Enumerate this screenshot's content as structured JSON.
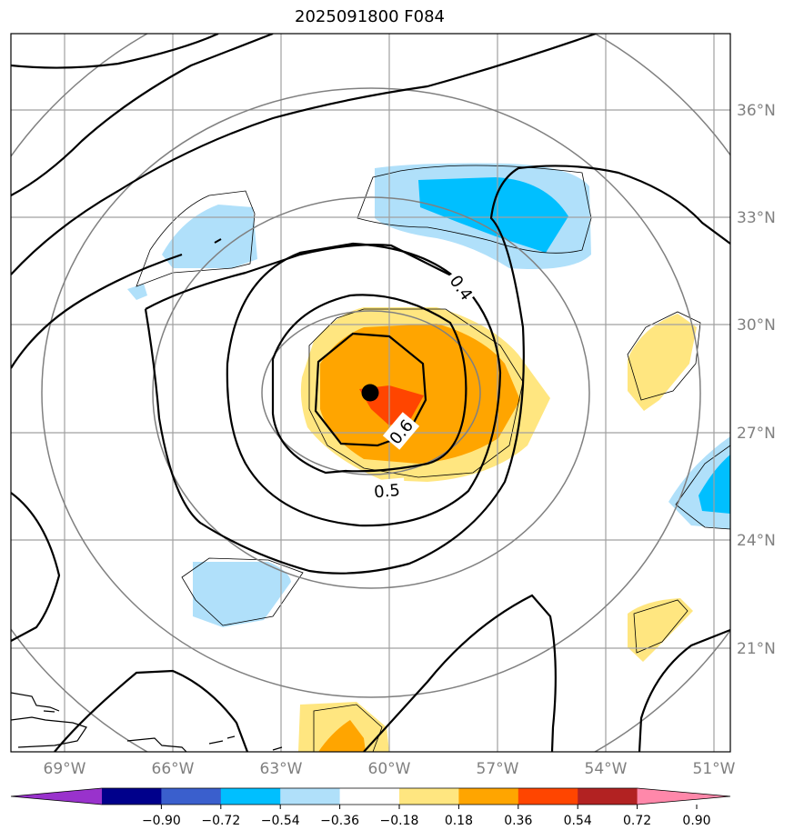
{
  "title": "2025091800 F084",
  "map": {
    "lon_labels": [
      "69°W",
      "66°W",
      "63°W",
      "60°W",
      "57°W",
      "54°W",
      "51°W"
    ],
    "lat_labels": [
      "36°N",
      "33°N",
      "30°N",
      "27°N",
      "24°N",
      "21°N"
    ],
    "contour_labels": [
      "0.4",
      "0.6",
      "0.5"
    ],
    "storm_center": {
      "lon": -60.5,
      "lat": 28.2
    },
    "grid_color": "#a0a0a0",
    "contour_color": "#000000",
    "range_ring_color": "#808080"
  },
  "colorbar": {
    "ticks": [
      "−0.90",
      "−0.72",
      "−0.54",
      "−0.36",
      "−0.18",
      "0.18",
      "0.36",
      "0.54",
      "0.72",
      "0.90"
    ],
    "colors": [
      "#9932cc",
      "#00008b",
      "#3a5fcd",
      "#00bfff",
      "#b0e0fa",
      "#ffffff",
      "#ffe680",
      "#ffa500",
      "#ff4500",
      "#b22222",
      "#ff88aa"
    ]
  }
}
